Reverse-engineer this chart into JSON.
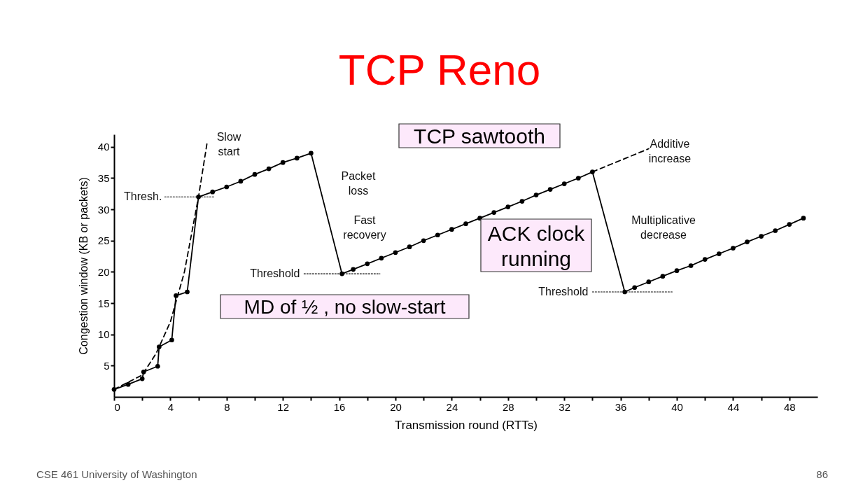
{
  "chart_data": {
    "type": "line",
    "title": "TCP Reno",
    "xlabel": "Transmission round (RTTs)",
    "ylabel": "Congestion window  (KB or packets)",
    "xlim": [
      0,
      50
    ],
    "ylim": [
      0,
      42
    ],
    "xticks": [
      0,
      {
        "value": 2,
        "label": null
      },
      4,
      {
        "value": 6,
        "label": null
      },
      8,
      {
        "value": 10,
        "label": null
      },
      12,
      {
        "value": 14,
        "label": null
      },
      16,
      {
        "value": 18,
        "label": null
      },
      20,
      {
        "value": 22,
        "label": null
      },
      24,
      {
        "value": 26,
        "label": null
      },
      28,
      {
        "value": 30,
        "label": null
      },
      32,
      {
        "value": 34,
        "label": null
      },
      36,
      {
        "value": 38,
        "label": null
      },
      40,
      {
        "value": 42,
        "label": null
      },
      44,
      {
        "value": 46,
        "label": null
      },
      48
    ],
    "yticks": [
      5,
      10,
      15,
      20,
      25,
      30,
      35,
      40
    ],
    "grid": false,
    "series": [
      {
        "color": "#000000",
        "line_style": "solid",
        "marker": "circle",
        "x": [
          0,
          1,
          2,
          2.1,
          3.1,
          3.2,
          4.1,
          4.4,
          5.2,
          6,
          7,
          8,
          9,
          10,
          11,
          12,
          13,
          14,
          16.2,
          17,
          18,
          19,
          20,
          21,
          22,
          23,
          24,
          25,
          26,
          27,
          28,
          29,
          30,
          31,
          32,
          33,
          34,
          36.3,
          37,
          38,
          39,
          40,
          41,
          42,
          43,
          44,
          45,
          46,
          47,
          48,
          49
        ],
        "values": [
          1.2,
          2,
          2.9,
          4,
          4.9,
          8,
          9.1,
          16.2,
          16.8,
          32,
          32.8,
          33.6,
          34.5,
          35.6,
          36.5,
          37.5,
          38.2,
          39,
          19.7,
          20.4,
          21.3,
          22.2,
          23.1,
          24.0,
          25.0,
          25.9,
          26.8,
          27.7,
          28.6,
          29.5,
          30.4,
          31.3,
          32.3,
          33.2,
          34.1,
          35.0,
          36.0,
          16.8,
          17.5,
          18.4,
          19.3,
          20.2,
          21.0,
          22.0,
          22.9,
          23.8,
          24.8,
          25.7,
          26.6,
          27.6,
          28.6
        ]
      },
      {
        "color": "#000000",
        "line_style": "dashed",
        "marker": "none",
        "x": [
          0,
          2,
          3,
          4,
          5,
          6,
          6.6
        ],
        "values": [
          1.2,
          3.5,
          7,
          12,
          20,
          32,
          40.5
        ]
      },
      {
        "color": "#000000",
        "line_style": "dashed",
        "marker": "none",
        "x": [
          34,
          38
        ],
        "values": [
          36,
          39.7
        ]
      },
      {
        "color": "#000000",
        "line_style": "dotted",
        "marker": "none",
        "x": [
          3.6,
          7.1
        ],
        "values": [
          32,
          32
        ]
      },
      {
        "color": "#000000",
        "line_style": "dotted",
        "marker": "none",
        "x": [
          13.5,
          18.9
        ],
        "values": [
          19.7,
          19.7
        ]
      },
      {
        "color": "#000000",
        "line_style": "dotted",
        "marker": "none",
        "x": [
          34,
          39.7
        ],
        "values": [
          16.8,
          16.8
        ]
      }
    ],
    "annotations": [
      {
        "text": "Thresh.",
        "x": 3.5,
        "y": 32
      },
      {
        "text": "Threshold",
        "x": 13.3,
        "y": 19.7
      },
      {
        "text": "Threshold",
        "x": 33.8,
        "y": 16.8
      },
      "Slow start",
      "Packet loss",
      "Fast recovery",
      "Additive increase",
      "Multiplicative decrease",
      "TCP sawtooth",
      "ACK clock running",
      "MD of ½ , no slow-start",
      "CSE 461 University of Washington",
      "86"
    ]
  }
}
